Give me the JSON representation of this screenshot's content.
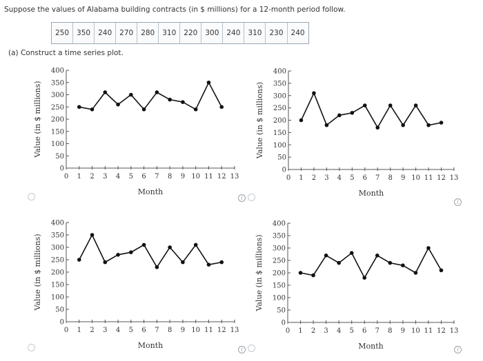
{
  "question": "Suppose the values of Alabama building contracts (in $ millions) for a 12-month period follow.",
  "values": [
    "250",
    "350",
    "240",
    "270",
    "280",
    "310",
    "220",
    "300",
    "240",
    "310",
    "230",
    "240"
  ],
  "part_a": "(a)  Construct a time series plot.",
  "info_glyph": "i",
  "colors": {
    "line": "#111111",
    "axis": "#555555",
    "radio_border": "#c4cad0",
    "info": "#9aa0a6"
  },
  "chart_data": [
    {
      "type": "line",
      "option": "top-left",
      "title": "",
      "xlabel": "Month",
      "ylabel": "Value (in $ millions)",
      "x": [
        1,
        2,
        3,
        4,
        5,
        6,
        7,
        8,
        9,
        10,
        11,
        12
      ],
      "y": [
        250,
        240,
        310,
        260,
        300,
        240,
        310,
        280,
        270,
        240,
        350,
        250
      ],
      "ylim": [
        0,
        400
      ],
      "yticks": [
        "0",
        "50",
        "100",
        "150",
        "200",
        "250",
        "300",
        "350",
        "400"
      ],
      "xticks": [
        "0",
        "1",
        "2",
        "3",
        "4",
        "5",
        "6",
        "7",
        "8",
        "9",
        "10",
        "11",
        "12",
        "13"
      ]
    },
    {
      "type": "line",
      "option": "top-right",
      "title": "",
      "xlabel": "Month",
      "ylabel": "Value (in $ millions)",
      "x": [
        1,
        2,
        3,
        4,
        5,
        6,
        7,
        8,
        9,
        10,
        11,
        12
      ],
      "y": [
        200,
        310,
        180,
        220,
        230,
        260,
        170,
        260,
        180,
        260,
        180,
        190
      ],
      "ylim": [
        0,
        400
      ],
      "yticks": [
        "0",
        "50",
        "100",
        "150",
        "200",
        "250",
        "300",
        "350",
        "400"
      ],
      "xticks": [
        "0",
        "1",
        "2",
        "3",
        "4",
        "5",
        "6",
        "7",
        "8",
        "9",
        "10",
        "11",
        "12",
        "13"
      ]
    },
    {
      "type": "line",
      "option": "bottom-left",
      "title": "",
      "xlabel": "Month",
      "ylabel": "Value (in $ millions)",
      "x": [
        1,
        2,
        3,
        4,
        5,
        6,
        7,
        8,
        9,
        10,
        11,
        12
      ],
      "y": [
        250,
        350,
        240,
        270,
        280,
        310,
        220,
        300,
        240,
        310,
        230,
        240
      ],
      "ylim": [
        0,
        400
      ],
      "yticks": [
        "0",
        "50",
        "100",
        "150",
        "200",
        "250",
        "300",
        "350",
        "400"
      ],
      "xticks": [
        "0",
        "1",
        "2",
        "3",
        "4",
        "5",
        "6",
        "7",
        "8",
        "9",
        "10",
        "11",
        "12",
        "13"
      ]
    },
    {
      "type": "line",
      "option": "bottom-right",
      "title": "",
      "xlabel": "Month",
      "ylabel": "Value (in $ millions)",
      "x": [
        1,
        2,
        3,
        4,
        5,
        6,
        7,
        8,
        9,
        10,
        11,
        12
      ],
      "y": [
        200,
        190,
        270,
        240,
        280,
        180,
        270,
        240,
        230,
        200,
        300,
        210
      ],
      "ylim": [
        0,
        400
      ],
      "yticks": [
        "0",
        "50",
        "100",
        "150",
        "200",
        "250",
        "300",
        "350",
        "400"
      ],
      "xticks": [
        "0",
        "1",
        "2",
        "3",
        "4",
        "5",
        "6",
        "7",
        "8",
        "9",
        "10",
        "11",
        "12",
        "13"
      ]
    }
  ]
}
